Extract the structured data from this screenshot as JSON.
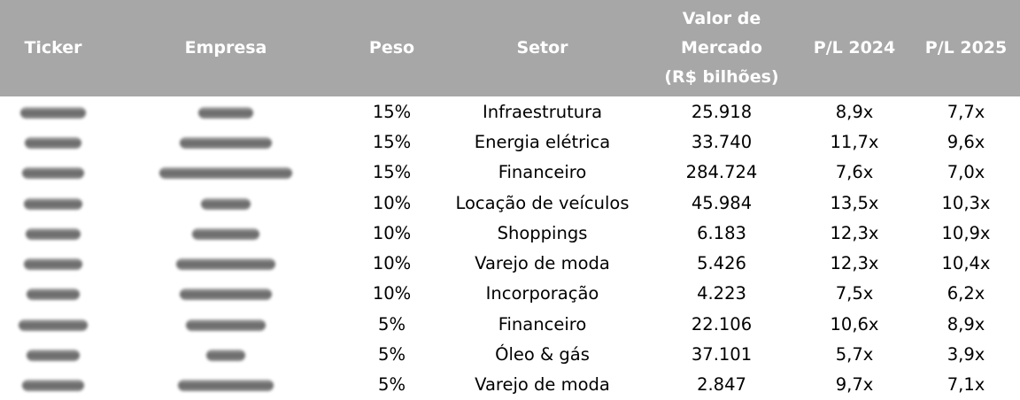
{
  "headers": {
    "ticker": "Ticker",
    "empresa": "Empresa",
    "peso": "Peso",
    "setor": "Setor",
    "valor_line1": "Valor de",
    "valor_line2": "Mercado",
    "valor_line3": "(R$ bilhões)",
    "pl2024": "P/L 2024",
    "pl2025": "P/L 2025"
  },
  "colors": {
    "header_background": "#a7a7a7",
    "header_text": "#ffffff"
  },
  "rows": [
    {
      "peso": "15%",
      "setor": "Infraestrutura",
      "valor": "25.918",
      "pl2024": "8,9x",
      "pl2025": "7,7x"
    },
    {
      "peso": "15%",
      "setor": "Energia elétrica",
      "valor": "33.740",
      "pl2024": "11,7x",
      "pl2025": "9,6x"
    },
    {
      "peso": "15%",
      "setor": "Financeiro",
      "valor": "284.724",
      "pl2024": "7,6x",
      "pl2025": "7,0x"
    },
    {
      "peso": "10%",
      "setor": "Locação de veículos",
      "valor": "45.984",
      "pl2024": "13,5x",
      "pl2025": "10,3x"
    },
    {
      "peso": "10%",
      "setor": "Shoppings",
      "valor": "6.183",
      "pl2024": "12,3x",
      "pl2025": "10,9x"
    },
    {
      "peso": "10%",
      "setor": "Varejo de moda",
      "valor": "5.426",
      "pl2024": "12,3x",
      "pl2025": "10,4x"
    },
    {
      "peso": "10%",
      "setor": "Incorporação",
      "valor": "4.223",
      "pl2024": "7,5x",
      "pl2025": "6,2x"
    },
    {
      "peso": "5%",
      "setor": "Financeiro",
      "valor": "22.106",
      "pl2024": "10,6x",
      "pl2025": "8,9x"
    },
    {
      "peso": "5%",
      "setor": "Óleo & gás",
      "valor": "37.101",
      "pl2024": "5,7x",
      "pl2025": "3,9x"
    },
    {
      "peso": "5%",
      "setor": "Varejo de moda",
      "valor": "2.847",
      "pl2024": "9,7x",
      "pl2025": "7,1x"
    }
  ]
}
